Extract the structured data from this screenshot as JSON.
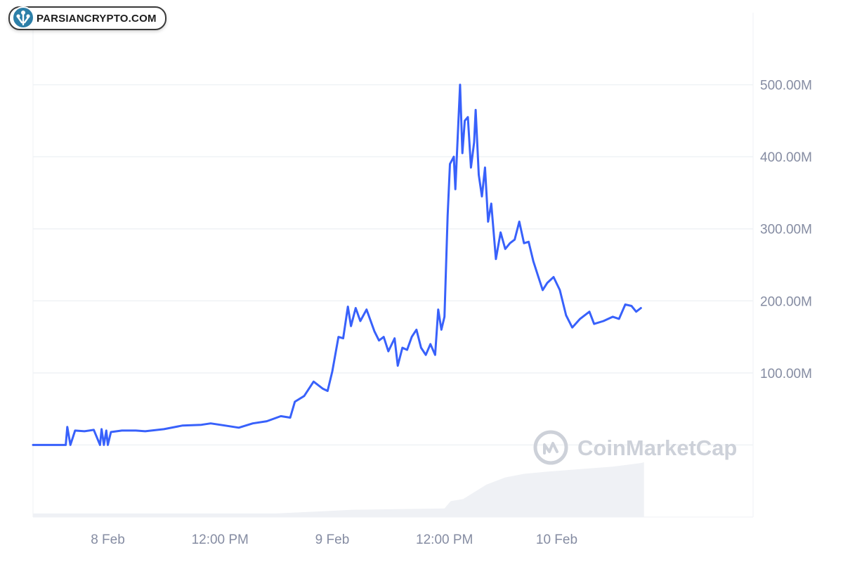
{
  "watermark_badge": {
    "text": "PARSIANCRYPTO.COM",
    "icon": "parsiancrypto-logo-icon"
  },
  "chart_watermark": {
    "text": "CoinMarketCap",
    "icon": "coinmarketcap-logo-icon"
  },
  "colors": {
    "line": "#3861fb",
    "volume": "#eff1f5",
    "grid": "#eff2f5",
    "axis_text": "#858ca2",
    "watermark": "#cdd1d9"
  },
  "chart_data": {
    "type": "line",
    "title": "",
    "xlabel": "",
    "ylabel": "",
    "ylim": [
      -100000000,
      600000000
    ],
    "y_axis_position": "right",
    "grid": "horizontal",
    "legend": "none",
    "y_ticks": [
      {
        "value": 100000000,
        "label": "100.00M"
      },
      {
        "value": 200000000,
        "label": "200.00M"
      },
      {
        "value": 300000000,
        "label": "300.00M"
      },
      {
        "value": 400000000,
        "label": "400.00M"
      },
      {
        "value": 500000000,
        "label": "500.00M"
      }
    ],
    "x_ticks": [
      {
        "value": "2024-02-08 00:00",
        "label": "8 Feb"
      },
      {
        "value": "2024-02-08 12:00",
        "label": "12:00 PM"
      },
      {
        "value": "2024-02-09 00:00",
        "label": "9 Feb"
      },
      {
        "value": "2024-02-09 12:00",
        "label": "12:00 PM"
      },
      {
        "value": "2024-02-10 00:00",
        "label": "10 Feb"
      }
    ],
    "x_range": [
      "2024-02-07 16:00",
      "2024-02-10 21:00"
    ],
    "series": [
      {
        "kind": "line",
        "values": [
          [
            "2024-02-07 16:00",
            0
          ],
          [
            "2024-02-07 19:30",
            0
          ],
          [
            "2024-02-07 19:40",
            25000000
          ],
          [
            "2024-02-07 20:00",
            0
          ],
          [
            "2024-02-07 20:30",
            20000000
          ],
          [
            "2024-02-07 21:30",
            19000000
          ],
          [
            "2024-02-07 22:30",
            21000000
          ],
          [
            "2024-02-07 23:10",
            0
          ],
          [
            "2024-02-07 23:20",
            22000000
          ],
          [
            "2024-02-07 23:35",
            0
          ],
          [
            "2024-02-07 23:50",
            20000000
          ],
          [
            "2024-02-08 00:00",
            0
          ],
          [
            "2024-02-08 00:20",
            18000000
          ],
          [
            "2024-02-08 01:30",
            20000000
          ],
          [
            "2024-02-08 03:00",
            20000000
          ],
          [
            "2024-02-08 04:00",
            19000000
          ],
          [
            "2024-02-08 06:00",
            22000000
          ],
          [
            "2024-02-08 08:00",
            27000000
          ],
          [
            "2024-02-08 10:00",
            28000000
          ],
          [
            "2024-02-08 11:00",
            30000000
          ],
          [
            "2024-02-08 12:30",
            27000000
          ],
          [
            "2024-02-08 14:00",
            24000000
          ],
          [
            "2024-02-08 15:30",
            30000000
          ],
          [
            "2024-02-08 17:00",
            33000000
          ],
          [
            "2024-02-08 18:30",
            40000000
          ],
          [
            "2024-02-08 19:30",
            38000000
          ],
          [
            "2024-02-08 20:00",
            60000000
          ],
          [
            "2024-02-08 21:00",
            68000000
          ],
          [
            "2024-02-08 22:00",
            88000000
          ],
          [
            "2024-02-08 23:00",
            78000000
          ],
          [
            "2024-02-08 23:30",
            75000000
          ],
          [
            "2024-02-09 00:00",
            102000000
          ],
          [
            "2024-02-09 00:40",
            150000000
          ],
          [
            "2024-02-09 01:10",
            148000000
          ],
          [
            "2024-02-09 01:40",
            192000000
          ],
          [
            "2024-02-09 02:00",
            165000000
          ],
          [
            "2024-02-09 02:30",
            190000000
          ],
          [
            "2024-02-09 03:00",
            172000000
          ],
          [
            "2024-02-09 03:40",
            188000000
          ],
          [
            "2024-02-09 04:30",
            158000000
          ],
          [
            "2024-02-09 05:00",
            145000000
          ],
          [
            "2024-02-09 05:30",
            150000000
          ],
          [
            "2024-02-09 06:00",
            130000000
          ],
          [
            "2024-02-09 06:40",
            148000000
          ],
          [
            "2024-02-09 07:00",
            110000000
          ],
          [
            "2024-02-09 07:30",
            135000000
          ],
          [
            "2024-02-09 08:00",
            132000000
          ],
          [
            "2024-02-09 08:30",
            150000000
          ],
          [
            "2024-02-09 09:00",
            160000000
          ],
          [
            "2024-02-09 09:30",
            135000000
          ],
          [
            "2024-02-09 10:00",
            125000000
          ],
          [
            "2024-02-09 10:30",
            140000000
          ],
          [
            "2024-02-09 11:00",
            125000000
          ],
          [
            "2024-02-09 11:20",
            188000000
          ],
          [
            "2024-02-09 11:40",
            160000000
          ],
          [
            "2024-02-09 12:00",
            178000000
          ],
          [
            "2024-02-09 12:20",
            318000000
          ],
          [
            "2024-02-09 12:35",
            390000000
          ],
          [
            "2024-02-09 13:00",
            400000000
          ],
          [
            "2024-02-09 13:10",
            355000000
          ],
          [
            "2024-02-09 13:40",
            500000000
          ],
          [
            "2024-02-09 13:55",
            405000000
          ],
          [
            "2024-02-09 14:10",
            450000000
          ],
          [
            "2024-02-09 14:30",
            455000000
          ],
          [
            "2024-02-09 14:50",
            385000000
          ],
          [
            "2024-02-09 15:10",
            420000000
          ],
          [
            "2024-02-09 15:20",
            465000000
          ],
          [
            "2024-02-09 15:40",
            375000000
          ],
          [
            "2024-02-09 16:00",
            345000000
          ],
          [
            "2024-02-09 16:20",
            385000000
          ],
          [
            "2024-02-09 16:40",
            310000000
          ],
          [
            "2024-02-09 17:00",
            335000000
          ],
          [
            "2024-02-09 17:30",
            258000000
          ],
          [
            "2024-02-09 18:00",
            295000000
          ],
          [
            "2024-02-09 18:30",
            272000000
          ],
          [
            "2024-02-09 19:00",
            280000000
          ],
          [
            "2024-02-09 19:30",
            285000000
          ],
          [
            "2024-02-09 20:00",
            310000000
          ],
          [
            "2024-02-09 20:30",
            280000000
          ],
          [
            "2024-02-09 21:00",
            282000000
          ],
          [
            "2024-02-09 21:30",
            255000000
          ],
          [
            "2024-02-09 22:00",
            235000000
          ],
          [
            "2024-02-09 22:30",
            215000000
          ],
          [
            "2024-02-09 23:00",
            225000000
          ],
          [
            "2024-02-09 23:40",
            233000000
          ],
          [
            "2024-02-10 00:20",
            215000000
          ],
          [
            "2024-02-10 01:00",
            180000000
          ],
          [
            "2024-02-10 01:40",
            163000000
          ],
          [
            "2024-02-10 02:30",
            175000000
          ],
          [
            "2024-02-10 03:30",
            185000000
          ],
          [
            "2024-02-10 04:00",
            168000000
          ],
          [
            "2024-02-10 05:00",
            172000000
          ],
          [
            "2024-02-10 06:00",
            178000000
          ],
          [
            "2024-02-10 06:40",
            175000000
          ],
          [
            "2024-02-10 07:20",
            195000000
          ],
          [
            "2024-02-10 08:00",
            193000000
          ],
          [
            "2024-02-10 08:30",
            185000000
          ],
          [
            "2024-02-10 09:00",
            190000000
          ]
        ]
      },
      {
        "kind": "volume-area",
        "values": [
          [
            "2024-02-07 16:00",
            -95000000
          ],
          [
            "2024-02-08 18:00",
            -95000000
          ],
          [
            "2024-02-08 23:00",
            -92000000
          ],
          [
            "2024-02-09 02:00",
            -90000000
          ],
          [
            "2024-02-09 12:00",
            -88000000
          ],
          [
            "2024-02-09 12:40",
            -78000000
          ],
          [
            "2024-02-09 14:00",
            -75000000
          ],
          [
            "2024-02-09 16:30",
            -55000000
          ],
          [
            "2024-02-09 18:30",
            -45000000
          ],
          [
            "2024-02-09 20:30",
            -40000000
          ],
          [
            "2024-02-09 23:00",
            -37000000
          ],
          [
            "2024-02-10 03:00",
            -33000000
          ],
          [
            "2024-02-10 06:00",
            -30000000
          ],
          [
            "2024-02-10 09:00",
            -25000000
          ],
          [
            "2024-02-10 09:20",
            -24000000
          ]
        ]
      }
    ]
  }
}
